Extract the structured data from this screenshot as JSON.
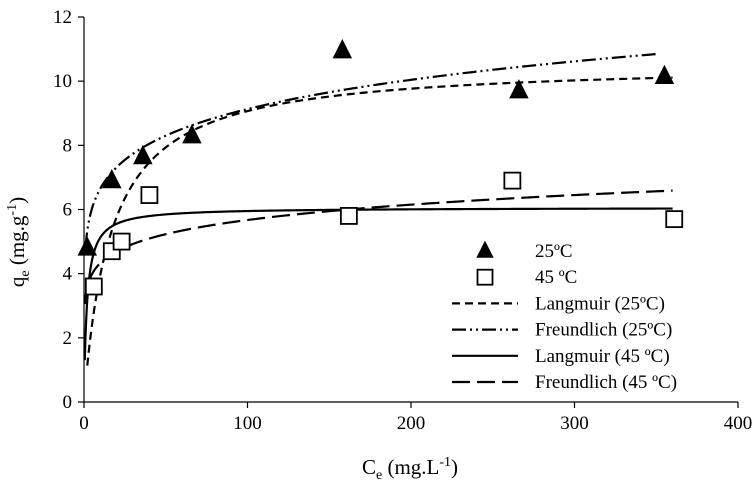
{
  "chart_data": {
    "type": "scatter",
    "title": "",
    "xlabel": {
      "main": "C",
      "sub": "e",
      "rest": " (mg.L",
      "sup": "-1",
      "end": ")"
    },
    "ylabel": {
      "main": "q",
      "sub": "e",
      "rest": " (mg.g",
      "sup": "-1",
      "end": ")"
    },
    "xlim": [
      0,
      400
    ],
    "ylim": [
      0,
      12
    ],
    "xticks": [
      0,
      100,
      200,
      300,
      400
    ],
    "yticks": [
      0,
      2,
      4,
      6,
      8,
      10,
      12
    ],
    "grid": false,
    "legend": "right",
    "series": [
      {
        "name": "25ºC",
        "kind": "points",
        "marker": "triangle",
        "x": [
          2,
          17,
          36,
          66,
          158,
          266,
          355
        ],
        "y": [
          4.8,
          6.9,
          7.65,
          8.3,
          10.95,
          9.7,
          10.15
        ]
      },
      {
        "name": "45 ºC",
        "kind": "points",
        "marker": "square",
        "x": [
          6,
          17,
          23,
          40,
          162,
          262,
          361
        ],
        "y": [
          3.6,
          4.7,
          5.0,
          6.45,
          5.8,
          6.9,
          5.7
        ]
      },
      {
        "name": "Langmuir (25ºC)",
        "kind": "line",
        "dash": "8,5",
        "model": "langmuir",
        "params": {
          "qmax": 10.58,
          "k": 0.06
        },
        "x_range": [
          2,
          360
        ]
      },
      {
        "name": "Freundlich (25ºC)",
        "kind": "line",
        "dash": "14,4,2,4,2,4",
        "model": "freundlich",
        "params": {
          "kf": 4.85,
          "n": 7.28
        },
        "x_range": [
          1,
          350
        ]
      },
      {
        "name": "Langmuir (45 ºC)",
        "kind": "line",
        "dash": "",
        "model": "langmuir",
        "params": {
          "qmax": 6.06,
          "k": 0.55
        },
        "x_range": [
          0.5,
          360
        ]
      },
      {
        "name": "Freundlich (45 ºC)",
        "kind": "line",
        "dash": "18,7",
        "model": "freundlich",
        "params": {
          "kf": 3.31,
          "n": 8.55
        },
        "x_range": [
          0.5,
          360
        ]
      }
    ]
  }
}
